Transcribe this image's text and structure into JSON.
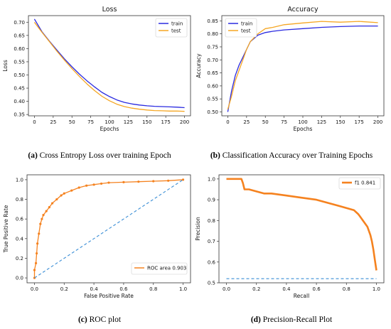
{
  "colors": {
    "train": "#2a2ae0",
    "test": "#f5a623",
    "roc": "#f5821f",
    "diag": "#3a8ed6",
    "axis": "#333333",
    "text": "#111111"
  },
  "chart_data": [
    {
      "id": "loss",
      "type": "line",
      "title": "Loss",
      "xlabel": "Epochs",
      "ylabel": "Loss",
      "xlim": [
        -8,
        208
      ],
      "ylim": [
        0.345,
        0.725
      ],
      "xticks": [
        0,
        25,
        50,
        75,
        100,
        125,
        150,
        175,
        200
      ],
      "yticks": [
        0.35,
        0.4,
        0.45,
        0.5,
        0.55,
        0.6,
        0.65,
        0.7
      ],
      "ytick_labels": [
        "0.35",
        "0.40",
        "0.45",
        "0.50",
        "0.55",
        "0.60",
        "0.65",
        "0.70"
      ],
      "legend": "top-right",
      "series": [
        {
          "name": "train",
          "x": [
            0,
            10,
            20,
            30,
            40,
            50,
            60,
            70,
            80,
            90,
            100,
            110,
            120,
            130,
            140,
            150,
            160,
            170,
            180,
            190,
            200
          ],
          "values": [
            0.712,
            0.664,
            0.628,
            0.594,
            0.561,
            0.531,
            0.503,
            0.478,
            0.455,
            0.434,
            0.418,
            0.405,
            0.396,
            0.39,
            0.386,
            0.383,
            0.381,
            0.38,
            0.379,
            0.378,
            0.376
          ]
        },
        {
          "name": "test",
          "x": [
            0,
            10,
            20,
            30,
            40,
            50,
            60,
            70,
            80,
            90,
            100,
            110,
            120,
            130,
            140,
            150,
            160,
            170,
            180,
            190,
            200
          ],
          "values": [
            0.7,
            0.662,
            0.626,
            0.59,
            0.556,
            0.524,
            0.494,
            0.466,
            0.441,
            0.419,
            0.402,
            0.389,
            0.38,
            0.374,
            0.37,
            0.367,
            0.365,
            0.364,
            0.363,
            0.363,
            0.362
          ]
        }
      ]
    },
    {
      "id": "acc",
      "type": "line",
      "title": "Accuracy",
      "xlabel": "Epochs",
      "ylabel": "Accuracy",
      "xlim": [
        -8,
        208
      ],
      "ylim": [
        0.485,
        0.87
      ],
      "xticks": [
        0,
        25,
        50,
        75,
        100,
        125,
        150,
        175,
        200
      ],
      "yticks": [
        0.5,
        0.55,
        0.6,
        0.65,
        0.7,
        0.75,
        0.8,
        0.85
      ],
      "ytick_labels": [
        "0.50",
        "0.55",
        "0.60",
        "0.65",
        "0.70",
        "0.75",
        "0.80",
        "0.85"
      ],
      "legend": "top-left",
      "series": [
        {
          "name": "train",
          "x": [
            0,
            5,
            10,
            15,
            20,
            25,
            30,
            40,
            50,
            60,
            75,
            100,
            125,
            150,
            175,
            200
          ],
          "values": [
            0.5,
            0.58,
            0.64,
            0.68,
            0.71,
            0.74,
            0.77,
            0.795,
            0.805,
            0.81,
            0.815,
            0.82,
            0.825,
            0.828,
            0.83,
            0.83
          ]
        },
        {
          "name": "test",
          "x": [
            0,
            5,
            10,
            15,
            20,
            25,
            30,
            40,
            50,
            60,
            75,
            100,
            125,
            150,
            175,
            200
          ],
          "values": [
            0.51,
            0.56,
            0.62,
            0.66,
            0.7,
            0.74,
            0.77,
            0.8,
            0.82,
            0.825,
            0.835,
            0.842,
            0.848,
            0.845,
            0.848,
            0.843
          ]
        }
      ]
    },
    {
      "id": "roc",
      "type": "line",
      "xlabel": "False Positive Rate",
      "ylabel": "True Positive Rate",
      "xlim": [
        -0.05,
        1.05
      ],
      "ylim": [
        -0.05,
        1.05
      ],
      "xticks": [
        0.0,
        0.2,
        0.4,
        0.6,
        0.8,
        1.0
      ],
      "xtick_labels": [
        "0.0",
        "0.2",
        "0.4",
        "0.6",
        "0.8",
        "1.0"
      ],
      "yticks": [
        0.0,
        0.2,
        0.4,
        0.6,
        0.8,
        1.0
      ],
      "ytick_labels": [
        "0.0",
        "0.2",
        "0.4",
        "0.6",
        "0.8",
        "1.0"
      ],
      "legend": "bottom-right",
      "series": [
        {
          "name": "ROC area 0.903",
          "x": [
            0.0,
            0.0,
            0.01,
            0.015,
            0.02,
            0.03,
            0.04,
            0.05,
            0.06,
            0.08,
            0.1,
            0.12,
            0.15,
            0.18,
            0.2,
            0.25,
            0.3,
            0.35,
            0.4,
            0.45,
            0.5,
            0.6,
            0.7,
            0.8,
            0.9,
            1.0
          ],
          "values": [
            0.0,
            0.08,
            0.15,
            0.25,
            0.35,
            0.45,
            0.55,
            0.6,
            0.64,
            0.68,
            0.72,
            0.76,
            0.8,
            0.84,
            0.86,
            0.89,
            0.92,
            0.94,
            0.95,
            0.96,
            0.97,
            0.975,
            0.98,
            0.985,
            0.99,
            1.0
          ]
        },
        {
          "name": "",
          "style": "dashed",
          "x": [
            0,
            1
          ],
          "values": [
            0,
            1
          ]
        }
      ]
    },
    {
      "id": "pr",
      "type": "line",
      "xlabel": "Recall",
      "ylabel": "Precision",
      "xlim": [
        -0.05,
        1.05
      ],
      "ylim": [
        0.5,
        1.02
      ],
      "xticks": [
        0.0,
        0.2,
        0.4,
        0.6,
        0.8,
        1.0
      ],
      "xtick_labels": [
        "0.0",
        "0.2",
        "0.4",
        "0.6",
        "0.8",
        "1.0"
      ],
      "yticks": [
        0.5,
        0.6,
        0.7,
        0.8,
        0.9,
        1.0
      ],
      "ytick_labels": [
        "0.5",
        "0.6",
        "0.7",
        "0.8",
        "0.9",
        "1.0"
      ],
      "legend": "top-right",
      "series": [
        {
          "name": "f1 0.841",
          "x": [
            0.0,
            0.05,
            0.1,
            0.11,
            0.12,
            0.15,
            0.2,
            0.25,
            0.3,
            0.4,
            0.5,
            0.6,
            0.7,
            0.75,
            0.8,
            0.85,
            0.88,
            0.9,
            0.92,
            0.94,
            0.95,
            0.96,
            0.97,
            0.98,
            0.99,
            1.0
          ],
          "values": [
            1.0,
            1.0,
            1.0,
            0.98,
            0.95,
            0.95,
            0.94,
            0.93,
            0.93,
            0.92,
            0.91,
            0.9,
            0.88,
            0.87,
            0.86,
            0.85,
            0.83,
            0.81,
            0.79,
            0.77,
            0.75,
            0.73,
            0.7,
            0.66,
            0.61,
            0.56
          ]
        },
        {
          "name": "",
          "style": "dashed",
          "x": [
            0.0,
            1.0
          ],
          "values": [
            0.52,
            0.52
          ]
        }
      ]
    }
  ],
  "captions": {
    "a_label": "(a)",
    "a_text": " Cross Entropy Loss over training Epoch",
    "b_label": "(b)",
    "b_text": " Classification Accuracy over Training Epochs",
    "c_label": "(c)",
    "c_text": " ROC plot",
    "d_label": "(d)",
    "d_text": " Precision-Recall Plot"
  }
}
